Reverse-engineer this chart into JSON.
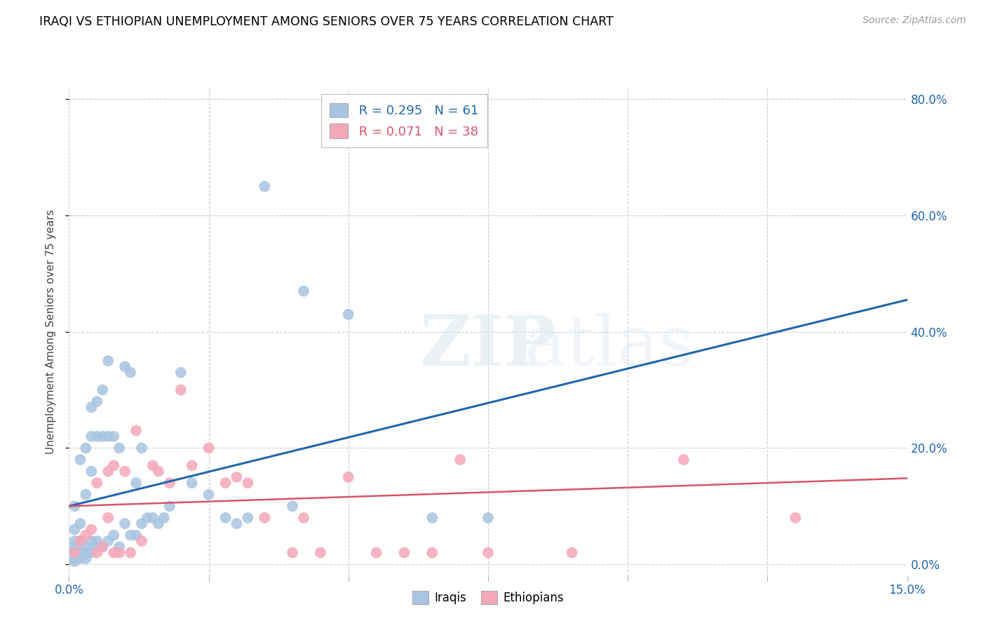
{
  "title": "IRAQI VS ETHIOPIAN UNEMPLOYMENT AMONG SENIORS OVER 75 YEARS CORRELATION CHART",
  "source": "Source: ZipAtlas.com",
  "ylabel": "Unemployment Among Seniors over 75 years",
  "xlim": [
    0.0,
    0.15
  ],
  "ylim": [
    -0.02,
    0.82
  ],
  "xticks": [
    0.0,
    0.025,
    0.05,
    0.075,
    0.1,
    0.125,
    0.15
  ],
  "xtick_labels": [
    "0.0%",
    "",
    "",
    "",
    "",
    "",
    "15.0%"
  ],
  "ytick_labels_right": [
    "0.0%",
    "20.0%",
    "40.0%",
    "60.0%",
    "80.0%"
  ],
  "yticks_right": [
    0.0,
    0.2,
    0.4,
    0.6,
    0.8
  ],
  "iraqi_R": 0.295,
  "iraqi_N": 61,
  "ethiopian_R": 0.071,
  "ethiopian_N": 38,
  "iraqi_color": "#a8c4e0",
  "iraqi_line_color": "#2166ac",
  "ethiopian_color": "#f4a7b9",
  "ethiopian_line_color": "#d6546c",
  "iraqi_line_x0": 0.0,
  "iraqi_line_y0": 0.1,
  "iraqi_line_x1": 0.15,
  "iraqi_line_y1": 0.455,
  "ethiopian_line_x0": 0.0,
  "ethiopian_line_y0": 0.1,
  "ethiopian_line_x1": 0.15,
  "ethiopian_line_y1": 0.148,
  "iraqi_x": [
    0.001,
    0.001,
    0.001,
    0.001,
    0.001,
    0.001,
    0.001,
    0.002,
    0.002,
    0.002,
    0.002,
    0.002,
    0.003,
    0.003,
    0.003,
    0.003,
    0.003,
    0.004,
    0.004,
    0.004,
    0.004,
    0.004,
    0.005,
    0.005,
    0.005,
    0.005,
    0.006,
    0.006,
    0.006,
    0.007,
    0.007,
    0.007,
    0.008,
    0.008,
    0.009,
    0.009,
    0.01,
    0.01,
    0.011,
    0.011,
    0.012,
    0.012,
    0.013,
    0.013,
    0.014,
    0.015,
    0.016,
    0.017,
    0.018,
    0.02,
    0.022,
    0.025,
    0.028,
    0.03,
    0.032,
    0.035,
    0.04,
    0.042,
    0.05,
    0.065,
    0.075
  ],
  "iraqi_y": [
    0.005,
    0.01,
    0.02,
    0.03,
    0.04,
    0.06,
    0.1,
    0.01,
    0.02,
    0.04,
    0.07,
    0.18,
    0.01,
    0.02,
    0.03,
    0.12,
    0.2,
    0.02,
    0.04,
    0.16,
    0.22,
    0.27,
    0.03,
    0.04,
    0.22,
    0.28,
    0.03,
    0.22,
    0.3,
    0.04,
    0.22,
    0.35,
    0.05,
    0.22,
    0.03,
    0.2,
    0.07,
    0.34,
    0.05,
    0.33,
    0.05,
    0.14,
    0.07,
    0.2,
    0.08,
    0.08,
    0.07,
    0.08,
    0.1,
    0.33,
    0.14,
    0.12,
    0.08,
    0.07,
    0.08,
    0.65,
    0.1,
    0.47,
    0.43,
    0.08,
    0.08
  ],
  "ethiopian_x": [
    0.001,
    0.002,
    0.003,
    0.004,
    0.005,
    0.005,
    0.006,
    0.007,
    0.007,
    0.008,
    0.008,
    0.009,
    0.01,
    0.011,
    0.012,
    0.013,
    0.015,
    0.016,
    0.018,
    0.02,
    0.022,
    0.025,
    0.028,
    0.03,
    0.032,
    0.035,
    0.04,
    0.042,
    0.045,
    0.05,
    0.055,
    0.06,
    0.065,
    0.07,
    0.075,
    0.09,
    0.11,
    0.13
  ],
  "ethiopian_y": [
    0.02,
    0.04,
    0.05,
    0.06,
    0.02,
    0.14,
    0.03,
    0.08,
    0.16,
    0.02,
    0.17,
    0.02,
    0.16,
    0.02,
    0.23,
    0.04,
    0.17,
    0.16,
    0.14,
    0.3,
    0.17,
    0.2,
    0.14,
    0.15,
    0.14,
    0.08,
    0.02,
    0.08,
    0.02,
    0.15,
    0.02,
    0.02,
    0.02,
    0.18,
    0.02,
    0.02,
    0.18,
    0.08
  ]
}
